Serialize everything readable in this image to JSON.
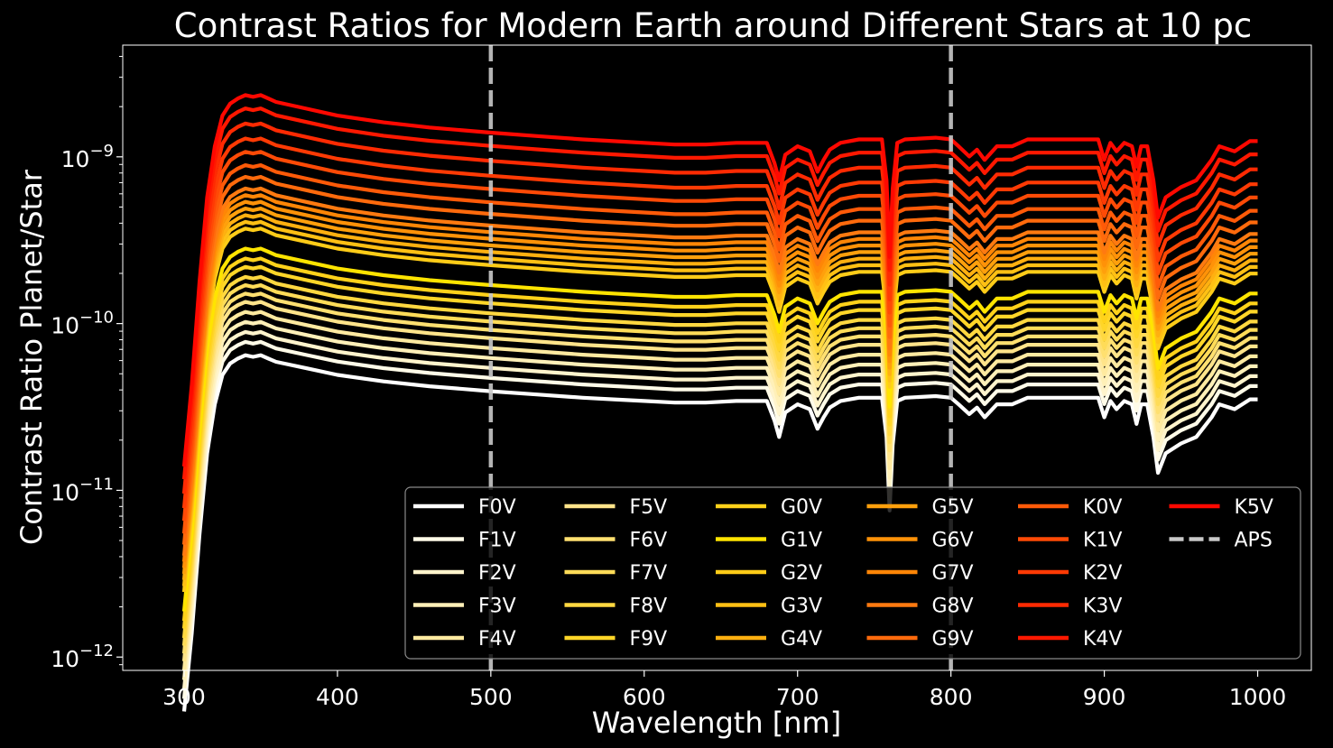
{
  "chart_data": {
    "type": "line",
    "title": "Contrast Ratios for Modern Earth around Different Stars at 10 pc",
    "xlabel": "Wavelength [nm]",
    "ylabel": "Contrast Ratio Planet/Star",
    "xlim": [
      260,
      1035
    ],
    "ylim_log10": [
      -12.08,
      -8.33
    ],
    "yscale": "log",
    "x_ticks": [
      300,
      400,
      500,
      600,
      700,
      800,
      900,
      1000
    ],
    "x_tick_labels": [
      "300",
      "400",
      "500",
      "600",
      "700",
      "800",
      "900",
      "1000"
    ],
    "y_ticks_log10": [
      -9,
      -10,
      -11,
      -12
    ],
    "y_tick_bases": [
      "10",
      "10",
      "10",
      "10"
    ],
    "y_tick_exponents": [
      "−9",
      "−10",
      "−11",
      "−12"
    ],
    "grid": false,
    "legend_position": "lower-right",
    "legend_columns": 6,
    "background": "#000000",
    "reference_lines": [
      {
        "name": "APS",
        "x": 500,
        "style": "dashed",
        "color": "#c8c8c8"
      },
      {
        "name": "APS",
        "x": 800,
        "style": "dashed",
        "color": "#c8c8c8"
      }
    ],
    "profile": {
      "description_x": [
        300,
        305,
        310,
        315,
        320,
        325,
        330,
        335,
        340,
        345,
        350,
        355,
        360,
        380,
        400,
        430,
        460,
        500,
        530,
        560,
        580,
        600,
        620,
        640,
        660,
        680,
        685,
        688,
        692,
        700,
        708,
        713,
        717,
        721,
        728,
        740,
        755,
        758,
        760,
        762,
        765,
        770,
        790,
        800,
        805,
        812,
        817,
        822,
        830,
        840,
        850,
        880,
        896,
        900,
        904,
        908,
        913,
        918,
        921,
        924,
        928,
        932,
        935,
        940,
        950,
        960,
        970,
        975,
        985,
        995,
        1000
      ],
      "shape_log10": [
        -2.18,
        -1.7,
        -1.1,
        -0.6,
        -0.3,
        -0.12,
        -0.05,
        -0.02,
        0.0,
        -0.01,
        0.0,
        -0.02,
        -0.04,
        -0.08,
        -0.12,
        -0.16,
        -0.19,
        -0.22,
        -0.24,
        -0.26,
        -0.27,
        -0.28,
        -0.29,
        -0.29,
        -0.28,
        -0.28,
        -0.4,
        -0.5,
        -0.35,
        -0.3,
        -0.33,
        -0.45,
        -0.38,
        -0.32,
        -0.28,
        -0.26,
        -0.26,
        -0.5,
        -0.95,
        -0.55,
        -0.28,
        -0.26,
        -0.25,
        -0.26,
        -0.3,
        -0.36,
        -0.32,
        -0.38,
        -0.3,
        -0.3,
        -0.26,
        -0.26,
        -0.26,
        -0.38,
        -0.28,
        -0.33,
        -0.28,
        -0.3,
        -0.42,
        -0.3,
        -0.3,
        -0.5,
        -0.72,
        -0.6,
        -0.54,
        -0.5,
        -0.38,
        -0.3,
        -0.33,
        -0.27,
        -0.27
      ]
    },
    "series": [
      {
        "name": "F0V",
        "color": "#ffffff",
        "peak_log10": -10.19
      },
      {
        "name": "F1V",
        "color": "#fffbe8",
        "peak_log10": -10.11
      },
      {
        "name": "F2V",
        "color": "#fff4cc",
        "peak_log10": -10.05
      },
      {
        "name": "F3V",
        "color": "#fff0b8",
        "peak_log10": -9.99
      },
      {
        "name": "F4V",
        "color": "#ffeaa0",
        "peak_log10": -9.93
      },
      {
        "name": "F5V",
        "color": "#ffe48a",
        "peak_log10": -9.87
      },
      {
        "name": "F6V",
        "color": "#ffe070",
        "peak_log10": -9.82
      },
      {
        "name": "F7V",
        "color": "#ffdc58",
        "peak_log10": -9.77
      },
      {
        "name": "F8V",
        "color": "#ffd840",
        "peak_log10": -9.72
      },
      {
        "name": "F9V",
        "color": "#ffd628",
        "peak_log10": -9.66
      },
      {
        "name": "G0V",
        "color": "#ffd21a",
        "peak_log10": -9.61
      },
      {
        "name": "G1V",
        "color": "#ffe400",
        "peak_log10": -9.55
      },
      {
        "name": "G2V",
        "color": "#ffcc18",
        "peak_log10": -9.43
      },
      {
        "name": "G3V",
        "color": "#ffc014",
        "peak_log10": -9.39
      },
      {
        "name": "G4V",
        "color": "#ffb010",
        "peak_log10": -9.35
      },
      {
        "name": "G5V",
        "color": "#ffa00c",
        "peak_log10": -9.31
      },
      {
        "name": "G6V",
        "color": "#ff9208",
        "peak_log10": -9.27
      },
      {
        "name": "G7V",
        "color": "#ff8606",
        "peak_log10": -9.23
      },
      {
        "name": "G8V",
        "color": "#ff7a10",
        "peak_log10": -9.19
      },
      {
        "name": "G9V",
        "color": "#ff6a0c",
        "peak_log10": -9.12
      },
      {
        "name": "K0V",
        "color": "#ff5a08",
        "peak_log10": -9.05
      },
      {
        "name": "K1V",
        "color": "#ff4a06",
        "peak_log10": -8.97
      },
      {
        "name": "K2V",
        "color": "#ff3a04",
        "peak_log10": -8.89
      },
      {
        "name": "K3V",
        "color": "#ff2a02",
        "peak_log10": -8.8
      },
      {
        "name": "K4V",
        "color": "#ff1800",
        "peak_log10": -8.71
      },
      {
        "name": "K5V",
        "color": "#ff0800",
        "peak_log10": -8.63
      }
    ],
    "legend_extra": {
      "name": "APS",
      "color": "#c8c8c8",
      "style": "dashed"
    }
  }
}
